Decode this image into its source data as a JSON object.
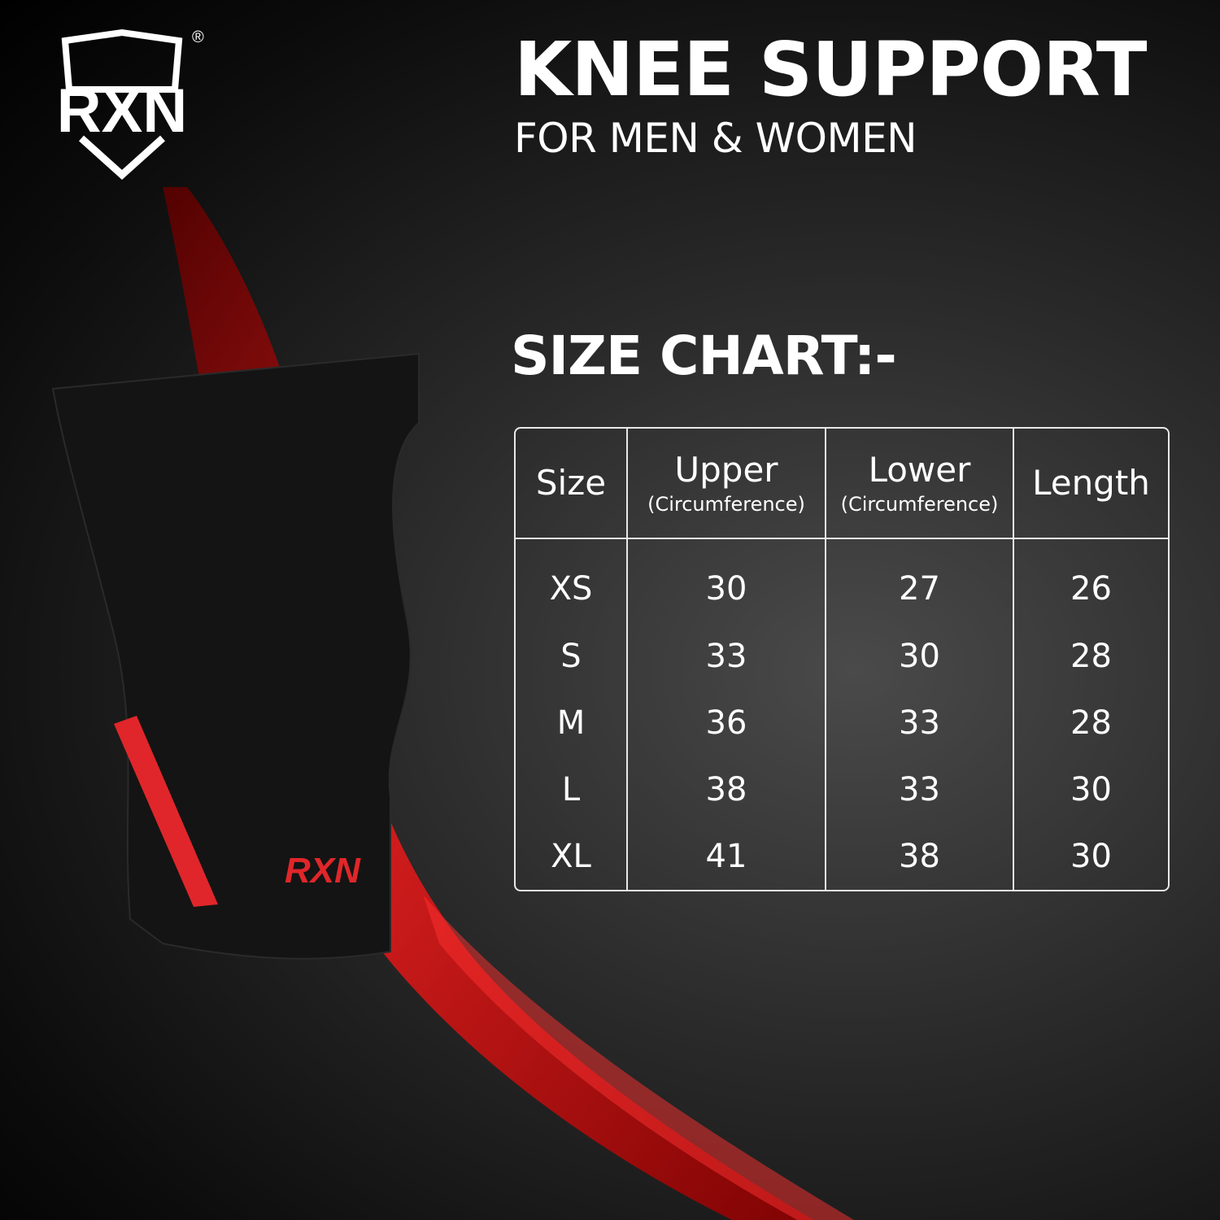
{
  "brand": {
    "logo_text": "RXN",
    "registered": "®",
    "sleeve_logo_text": "RXN"
  },
  "header": {
    "title": "KNEE SUPPORT",
    "subtitle": "FOR MEN & WOMEN"
  },
  "size_chart": {
    "heading": "SIZE CHART:-",
    "columns": [
      {
        "label": "Size",
        "sub": ""
      },
      {
        "label": "Upper",
        "sub": "(Circumference)"
      },
      {
        "label": "Lower",
        "sub": "(Circumference)"
      },
      {
        "label": "Length",
        "sub": ""
      }
    ],
    "rows": [
      [
        "XS",
        "30",
        "27",
        "26"
      ],
      [
        "S",
        "33",
        "30",
        "28"
      ],
      [
        "M",
        "36",
        "33",
        "28"
      ],
      [
        "L",
        "38",
        "33",
        "30"
      ],
      [
        "XL",
        "41",
        "38",
        "30"
      ]
    ]
  },
  "colors": {
    "accent": "#d8181c",
    "background": "#1a1a1a",
    "text": "#ffffff"
  }
}
